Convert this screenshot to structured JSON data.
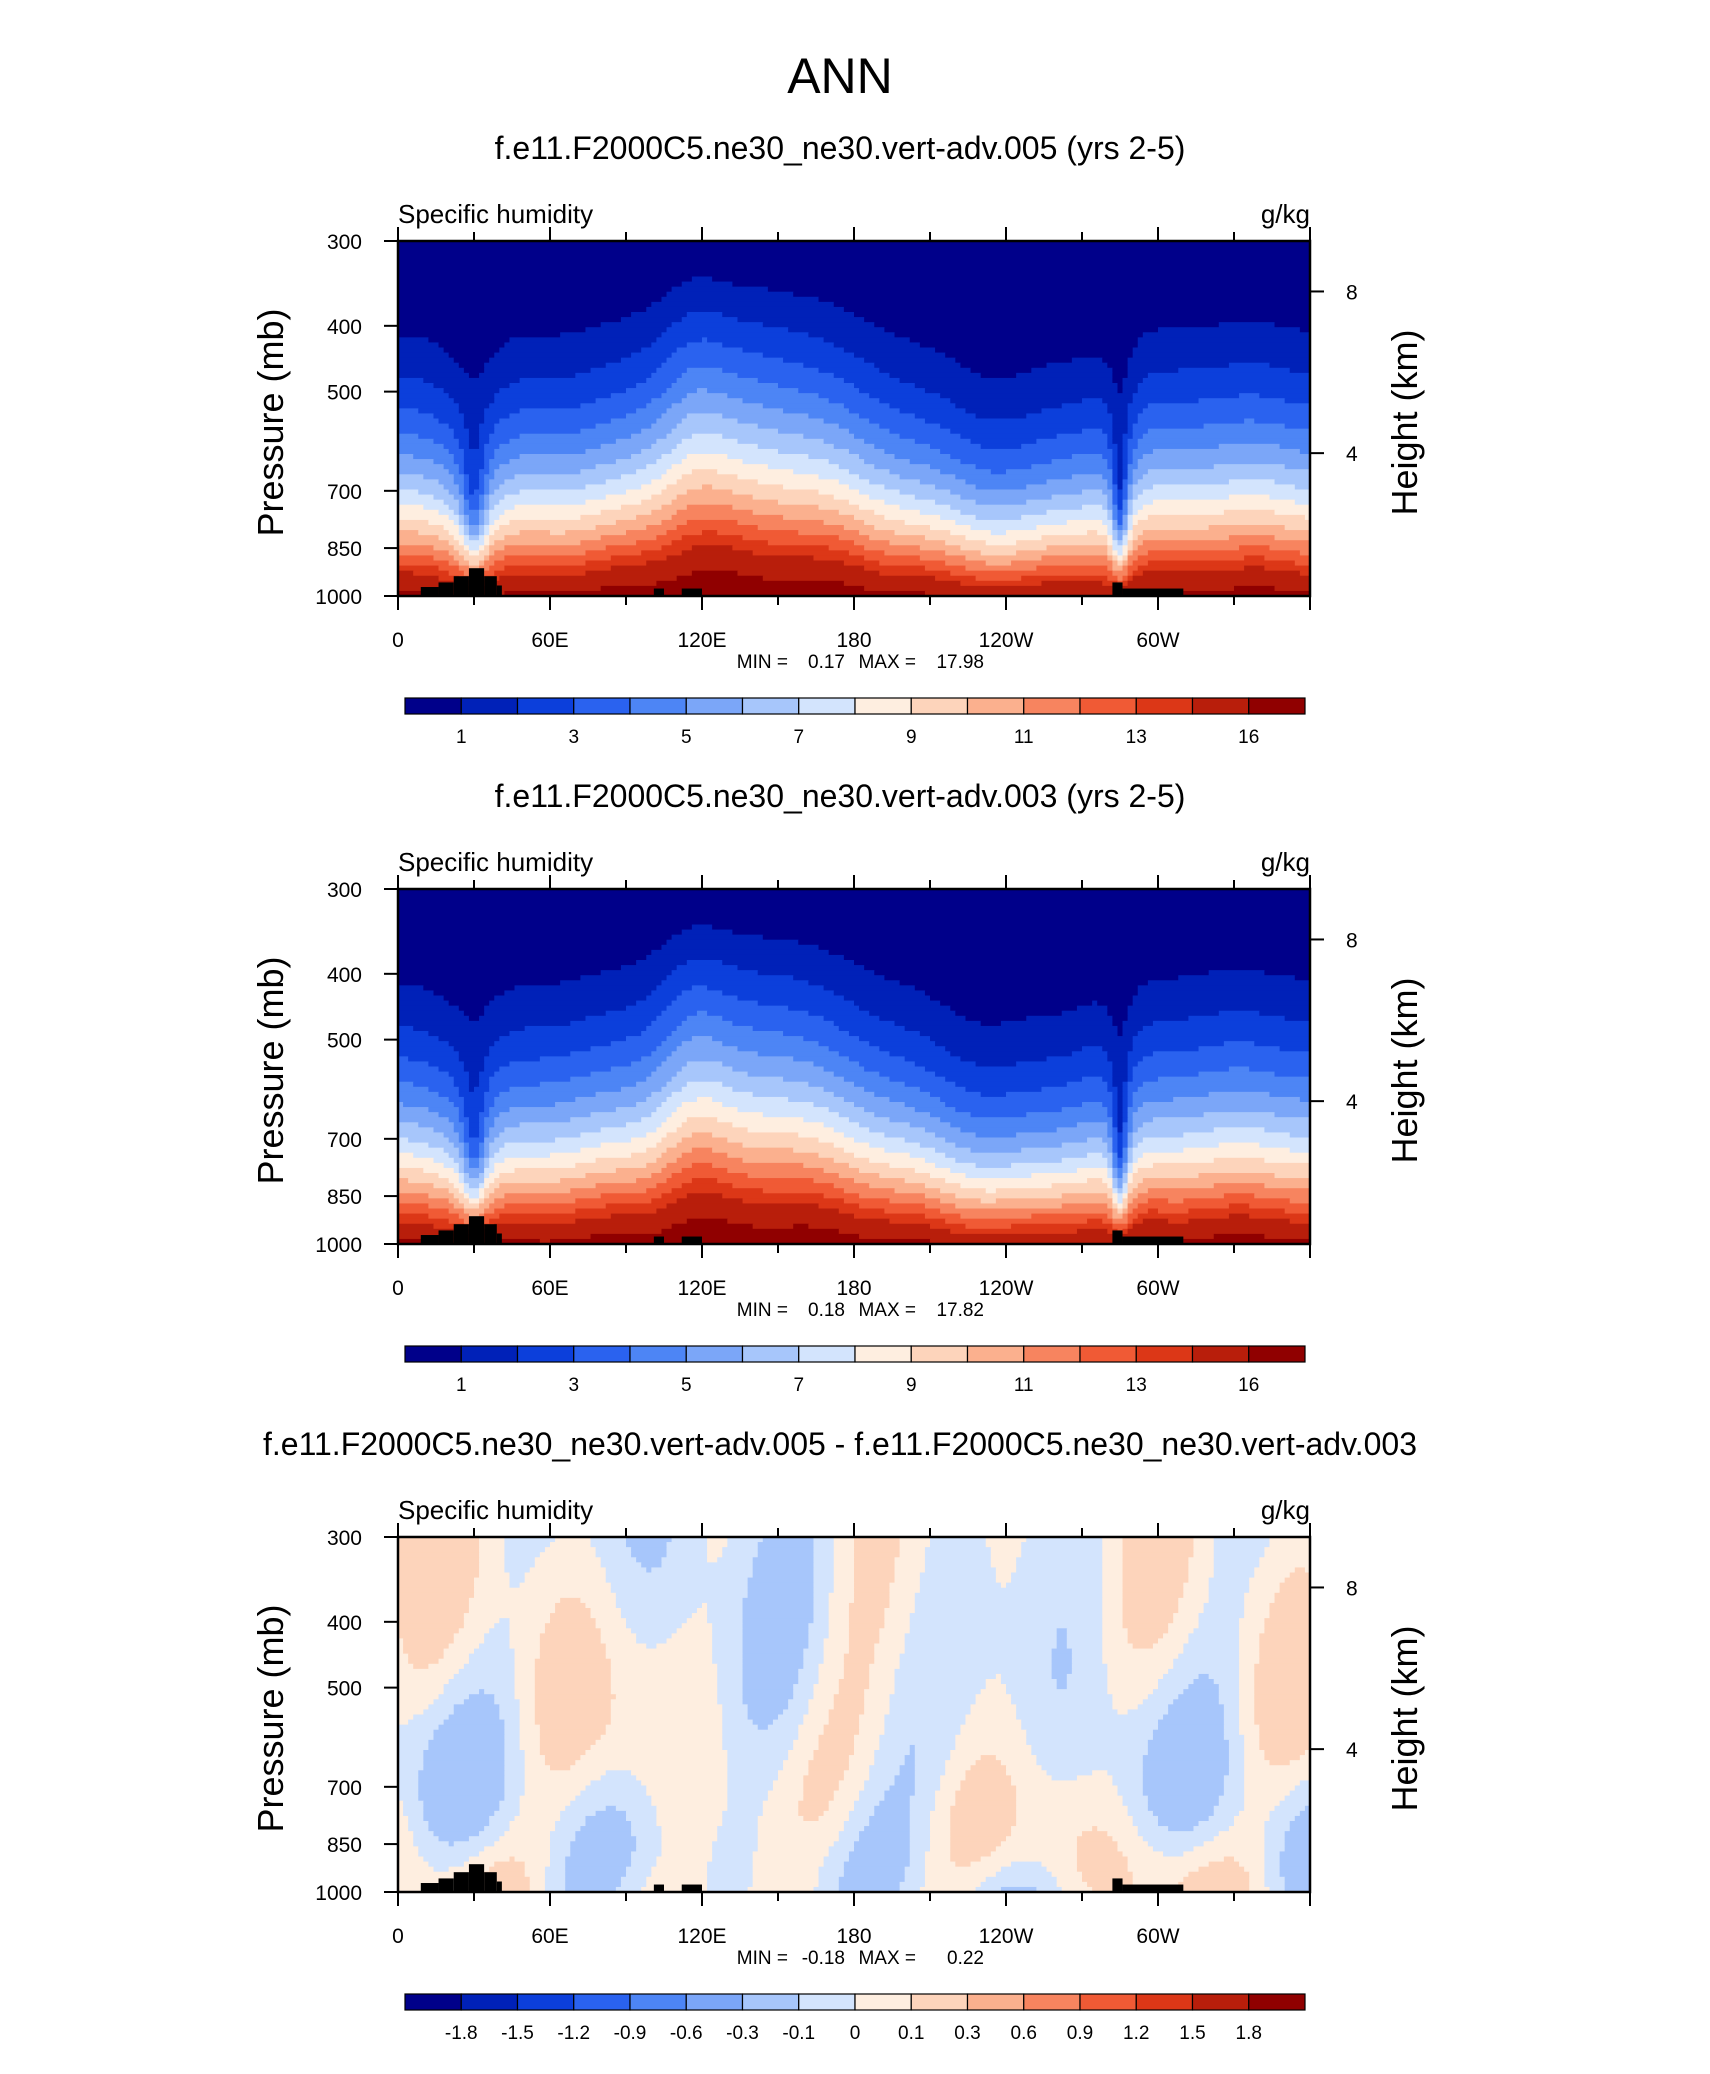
{
  "page_title": "ANN",
  "left_axis_label": "Pressure (mb)",
  "right_axis_label": "Height (km)",
  "chart_data": [
    {
      "type": "heatmap",
      "title": "f.e11.F2000C5.ne30_ne30.vert-adv.005 (yrs 2-5)",
      "variable": "Specific humidity",
      "units": "g/kg",
      "y_ticks": [
        "300",
        "400",
        "500",
        "700",
        "850",
        "1000"
      ],
      "x_ticks": [
        "0",
        "60E",
        "120E",
        "180",
        "120W",
        "60W"
      ],
      "right_ticks": [
        "8",
        "4"
      ],
      "min_label": "MIN =",
      "min": "0.17",
      "max_label": "MAX =",
      "max": "17.98",
      "colorbar_labels": [
        "1",
        "3",
        "5",
        "7",
        "9",
        "11",
        "13",
        "16"
      ],
      "colorbar_colors": [
        "#00008a",
        "#0021b8",
        "#0c3fdb",
        "#2a62ef",
        "#4d85f5",
        "#7ba6f8",
        "#a7c6fb",
        "#d3e4fd",
        "#feeee0",
        "#fdd4bb",
        "#fbb08e",
        "#f7845f",
        "#f05a35",
        "#dc3717",
        "#b81e0b",
        "#900000"
      ],
      "plot": "humidity",
      "seed": 1,
      "y_range_mb": [
        300,
        1000
      ]
    },
    {
      "type": "heatmap",
      "title": "f.e11.F2000C5.ne30_ne30.vert-adv.003 (yrs 2-5)",
      "variable": "Specific humidity",
      "units": "g/kg",
      "y_ticks": [
        "300",
        "400",
        "500",
        "700",
        "850",
        "1000"
      ],
      "x_ticks": [
        "0",
        "60E",
        "120E",
        "180",
        "120W",
        "60W"
      ],
      "right_ticks": [
        "8",
        "4"
      ],
      "min_label": "MIN =",
      "min": "0.18",
      "max_label": "MAX =",
      "max": "17.82",
      "colorbar_labels": [
        "1",
        "3",
        "5",
        "7",
        "9",
        "11",
        "13",
        "16"
      ],
      "colorbar_colors": [
        "#00008a",
        "#0021b8",
        "#0c3fdb",
        "#2a62ef",
        "#4d85f5",
        "#7ba6f8",
        "#a7c6fb",
        "#d3e4fd",
        "#feeee0",
        "#fdd4bb",
        "#fbb08e",
        "#f7845f",
        "#f05a35",
        "#dc3717",
        "#b81e0b",
        "#900000"
      ],
      "plot": "humidity",
      "seed": 2,
      "y_range_mb": [
        300,
        1000
      ]
    },
    {
      "type": "heatmap",
      "title": "f.e11.F2000C5.ne30_ne30.vert-adv.005 - f.e11.F2000C5.ne30_ne30.vert-adv.003",
      "variable": "Specific humidity",
      "units": "g/kg",
      "y_ticks": [
        "300",
        "400",
        "500",
        "700",
        "850",
        "1000"
      ],
      "x_ticks": [
        "0",
        "60E",
        "120E",
        "180",
        "120W",
        "60W"
      ],
      "right_ticks": [
        "8",
        "4"
      ],
      "min_label": "MIN =",
      "min": "-0.18",
      "max_label": "MAX =",
      "max": "0.22",
      "colorbar_labels": [
        "-1.8",
        "-1.5",
        "-1.2",
        "-0.9",
        "-0.6",
        "-0.3",
        "-0.1",
        "0",
        "0.1",
        "0.3",
        "0.6",
        "0.9",
        "1.2",
        "1.5",
        "1.8"
      ],
      "colorbar_colors": [
        "#00008a",
        "#0021b8",
        "#0c3fdb",
        "#2a62ef",
        "#4d85f5",
        "#7ba6f8",
        "#a7c6fb",
        "#d3e4fd",
        "#feeee0",
        "#fdd4bb",
        "#fbb08e",
        "#f7845f",
        "#f05a35",
        "#dc3717",
        "#b81e0b",
        "#900000"
      ],
      "plot": "difference",
      "y_range_mb": [
        300,
        1000
      ]
    }
  ]
}
